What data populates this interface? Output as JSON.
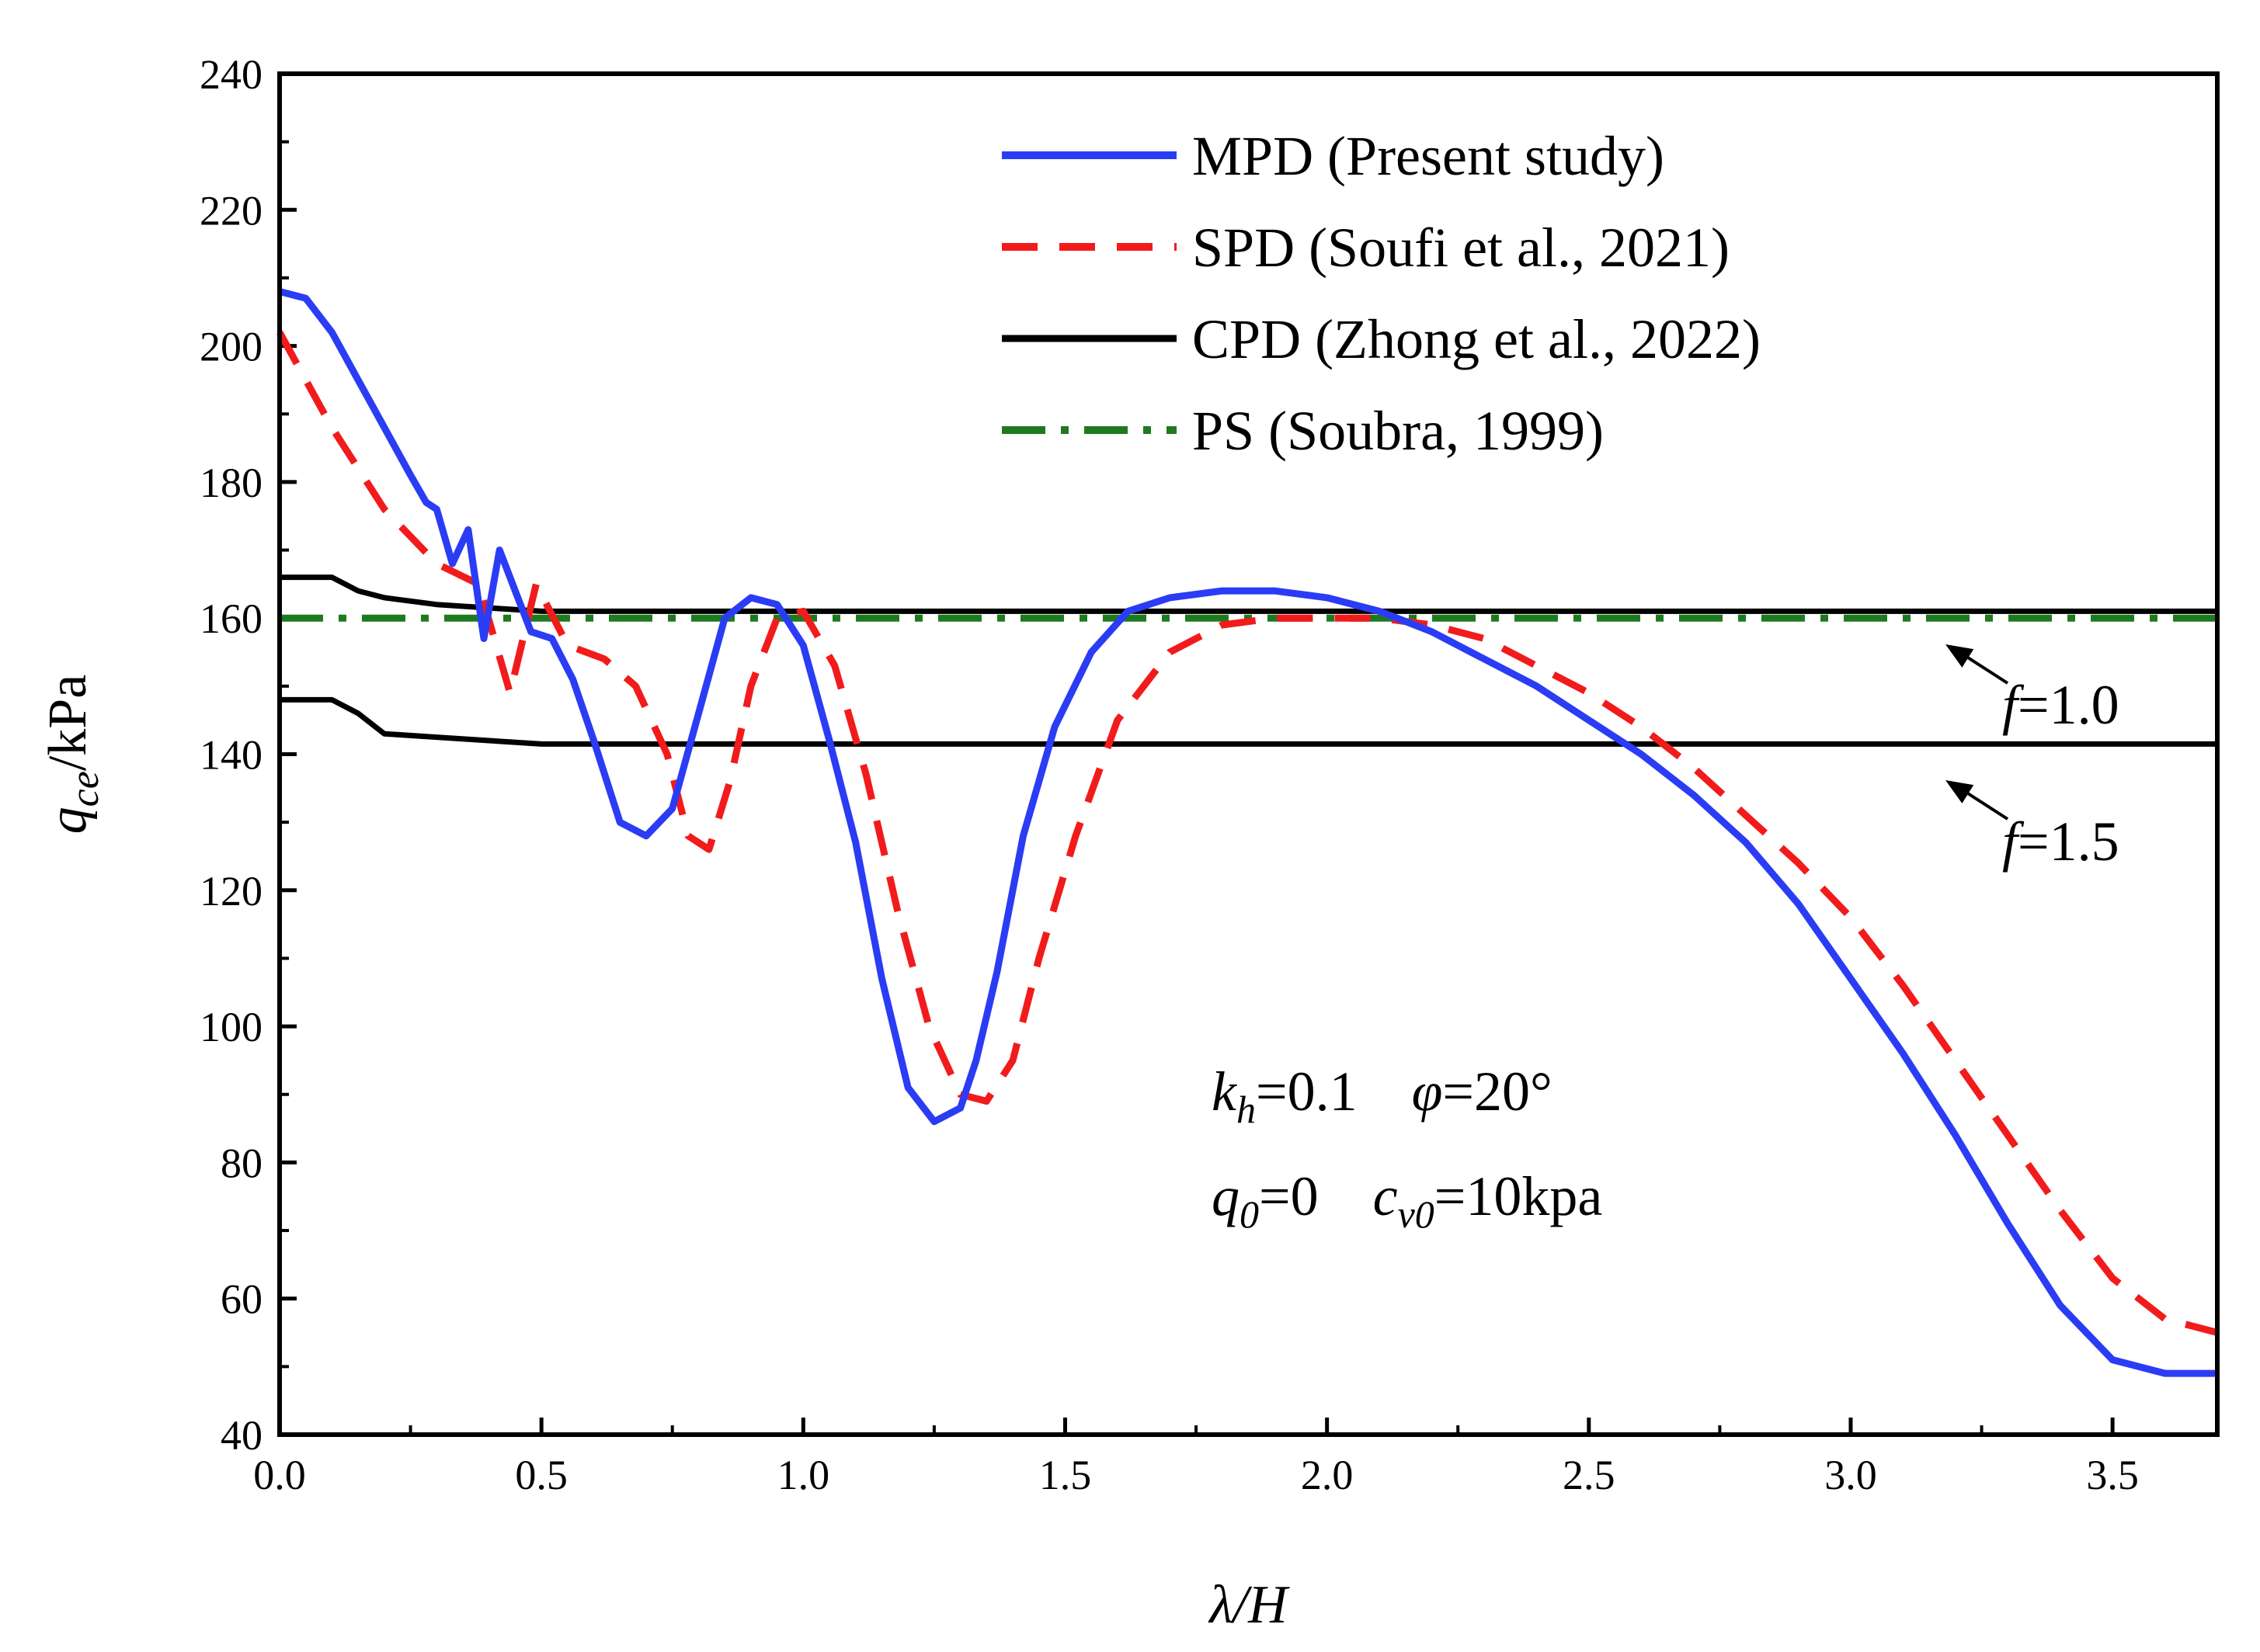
{
  "chart_data": {
    "type": "line",
    "xlabel": "λ/H",
    "ylabel": "q_ce/kPa",
    "xlim": [
      0,
      3.7
    ],
    "ylim": [
      40,
      240
    ],
    "xticks": [
      "0.0",
      "0.5",
      "1.0",
      "1.5",
      "2.0",
      "2.5",
      "3.0",
      "3.5"
    ],
    "yticks": [
      "40",
      "60",
      "80",
      "100",
      "120",
      "140",
      "160",
      "180",
      "200",
      "220",
      "240"
    ],
    "legend_position": "top-right",
    "series": [
      {
        "name": "MPD (Present study)",
        "style": "solid",
        "color": "#2b3cf5",
        "x": [
          0.0,
          0.05,
          0.1,
          0.15,
          0.2,
          0.25,
          0.28,
          0.3,
          0.33,
          0.36,
          0.39,
          0.42,
          0.45,
          0.48,
          0.52,
          0.56,
          0.6,
          0.65,
          0.7,
          0.75,
          0.8,
          0.85,
          0.9,
          0.95,
          1.0,
          1.05,
          1.1,
          1.15,
          1.2,
          1.25,
          1.3,
          1.33,
          1.37,
          1.42,
          1.48,
          1.55,
          1.62,
          1.7,
          1.8,
          1.9,
          2.0,
          2.1,
          2.2,
          2.3,
          2.4,
          2.5,
          2.6,
          2.7,
          2.8,
          2.9,
          3.0,
          3.1,
          3.2,
          3.3,
          3.4,
          3.5,
          3.6,
          3.7
        ],
        "y": [
          208,
          207,
          202,
          195,
          188,
          181,
          177,
          176,
          168,
          173,
          157,
          170,
          164,
          158,
          157,
          151,
          142,
          130,
          128,
          132,
          146,
          160,
          163,
          162,
          156,
          142,
          127,
          107,
          91,
          86,
          88,
          95,
          108,
          128,
          144,
          155,
          161,
          163,
          164,
          164,
          163,
          161,
          158,
          154,
          150,
          145,
          140,
          134,
          127,
          118,
          107,
          96,
          84,
          71,
          59,
          51,
          49,
          49
        ],
        "x_overlay": [],
        "note": ""
      },
      {
        "name": "SPD  (Soufi et al., 2021)",
        "style": "dashed",
        "color": "#f21b1b",
        "x": [
          0.0,
          0.1,
          0.2,
          0.3,
          0.38,
          0.44,
          0.49,
          0.55,
          0.62,
          0.68,
          0.74,
          0.78,
          0.82,
          0.86,
          0.9,
          0.95,
          1.0,
          1.06,
          1.12,
          1.18,
          1.24,
          1.3,
          1.35,
          1.4,
          1.45,
          1.52,
          1.6,
          1.7,
          1.8,
          1.9,
          2.0,
          2.1,
          2.2,
          2.3,
          2.4,
          2.5,
          2.6,
          2.7,
          2.8,
          2.9,
          3.0,
          3.1,
          3.2,
          3.3,
          3.4,
          3.5,
          3.6,
          3.7
        ],
        "y": [
          202,
          188,
          176,
          168,
          165,
          149,
          165,
          156,
          154,
          150,
          140,
          128,
          126,
          136,
          150,
          160,
          161,
          153,
          137,
          117,
          100,
          90,
          89,
          95,
          110,
          128,
          145,
          155,
          159,
          160,
          160,
          160,
          159,
          157,
          153,
          149,
          144,
          138,
          131,
          124,
          116,
          106,
          95,
          84,
          73,
          63,
          57,
          55
        ],
        "x_overlay": [],
        "note": ""
      },
      {
        "name": "CPD (Zhong et al., 2022)",
        "style": "solid",
        "color": "#000000",
        "x": [
          0.0,
          0.05,
          0.1,
          0.15,
          0.2,
          0.3,
          0.4,
          0.5,
          0.7,
          1.0,
          1.5,
          2.0,
          2.5,
          3.0,
          3.5,
          3.7
        ],
        "y": [
          166,
          166,
          166,
          164,
          163,
          162,
          161.5,
          161,
          161,
          161,
          161,
          161,
          161,
          161,
          161,
          161
        ],
        "x_overlay": [],
        "note": ""
      },
      {
        "name": "",
        "style": "solid",
        "color": "#000000",
        "x": [
          0.0,
          0.05,
          0.1,
          0.15,
          0.2,
          0.3,
          0.4,
          0.5,
          0.7,
          1.0,
          1.5,
          2.0,
          2.5,
          3.0,
          3.5,
          3.7
        ],
        "y": [
          148,
          148,
          148,
          146,
          143,
          142.5,
          142,
          141.5,
          141.5,
          141.5,
          141.5,
          141.5,
          141.5,
          141.5,
          141.5,
          141.5
        ],
        "x_overlay": [],
        "note": ""
      },
      {
        "name": "PS    (Soubra, 1999)",
        "style": "dashdot",
        "color": "#1f7a1f",
        "x": [
          0.0,
          3.7
        ],
        "y": [
          160,
          160
        ],
        "x_overlay": [],
        "note": ""
      }
    ],
    "annotations": {
      "f1": {
        "italic": "f",
        "rest": "=1.0"
      },
      "f2": {
        "italic": "f",
        "rest": "=1.5"
      },
      "param1": {
        "kh": "k",
        "kh_sub": "h",
        "kh_val": "=0.1",
        "phi": "φ",
        "phi_val": "=20°"
      },
      "param2": {
        "q": "q",
        "q_sub": "0",
        "q_val": "=0",
        "c": "c",
        "c_sub": "v0",
        "c_val": "=10kpa"
      }
    }
  }
}
